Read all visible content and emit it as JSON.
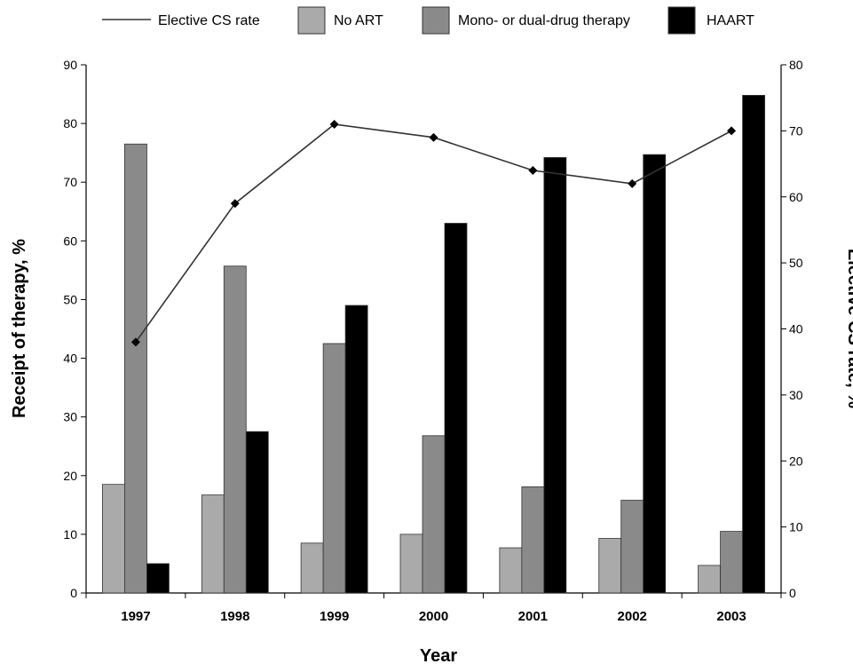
{
  "chart_data": {
    "type": "bar",
    "categories": [
      "1997",
      "1998",
      "1999",
      "2000",
      "2001",
      "2002",
      "2003"
    ],
    "series": [
      {
        "name": "No ART",
        "kind": "bar",
        "axis": "left",
        "color": "#aaaaaa",
        "values": [
          18.5,
          16.7,
          8.5,
          10,
          7.7,
          9.3,
          4.7
        ]
      },
      {
        "name": "Mono- or dual-drug therapy",
        "kind": "bar",
        "axis": "left",
        "color": "#8a8a8a",
        "values": [
          76.5,
          55.7,
          42.5,
          26.8,
          18.1,
          15.8,
          10.5
        ]
      },
      {
        "name": "HAART",
        "kind": "bar",
        "axis": "left",
        "color": "#000000",
        "values": [
          5,
          27.5,
          49,
          63,
          74.2,
          74.7,
          84.8
        ]
      },
      {
        "name": "Elective CS rate",
        "kind": "line",
        "axis": "right",
        "color": "#333333",
        "values": [
          38,
          59,
          71,
          69,
          64,
          62,
          70
        ]
      }
    ],
    "legend": {
      "placement": "top",
      "items": [
        "Elective CS rate",
        "No ART",
        "Mono- or dual-drug therapy",
        "HAART"
      ]
    },
    "xlabel": "Year",
    "ylabel": "Receipt of therapy, %",
    "ylabel_right": "Elective CS rate, %",
    "ylim": [
      0,
      90
    ],
    "ylim_right": [
      0,
      80
    ],
    "yticks": [
      0,
      10,
      20,
      30,
      40,
      50,
      60,
      70,
      80,
      90
    ],
    "yticks_right": [
      0,
      10,
      20,
      30,
      40,
      50,
      60,
      70,
      80
    ],
    "grid": false
  }
}
